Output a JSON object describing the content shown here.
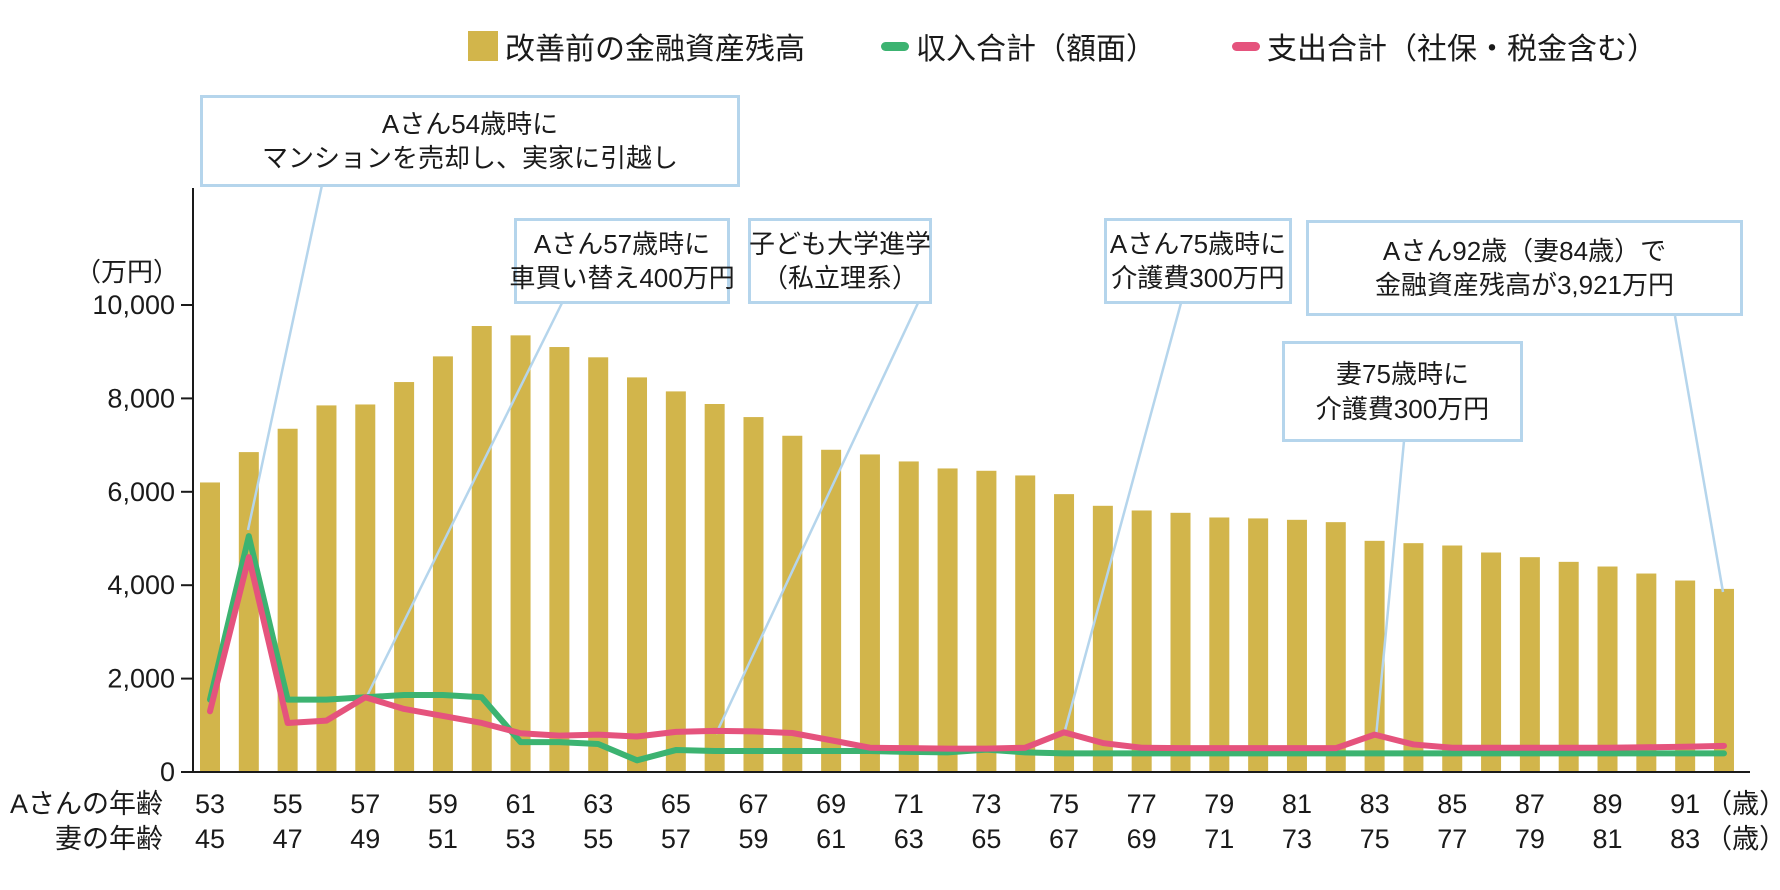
{
  "legend": {
    "items": [
      {
        "label": "改善前の金融資産残高",
        "type": "bar"
      },
      {
        "label": "収入合計（額面）",
        "type": "line"
      },
      {
        "label": "支出合計（社保・税金含む）",
        "type": "line"
      }
    ]
  },
  "y_axis": {
    "unit_label": "（万円）",
    "tick_labels": [
      "0",
      "2,000",
      "4,000",
      "6,000",
      "8,000",
      "10,000"
    ]
  },
  "x_axis": {
    "row1_label": "Aさんの年齢",
    "row2_label": "妻の年齢",
    "age_suffix": "（歳）"
  },
  "annotations": [
    {
      "line1": "Aさん54歳時に",
      "line2": "マンションを売却し、実家に引越し"
    },
    {
      "line1": "Aさん57歳時に",
      "line2": "車買い替え400万円"
    },
    {
      "line1": "子ども大学進学",
      "line2": "（私立理系）"
    },
    {
      "line1": "Aさん75歳時に",
      "line2": "介護費300万円"
    },
    {
      "line1": "妻75歳時に",
      "line2": "介護費300万円"
    },
    {
      "line1": "Aさん92歳（妻84歳）で",
      "line2": "金融資産残高が3,921万円"
    }
  ],
  "colors": {
    "bar": "#d2b54b",
    "income": "#3cb371",
    "expense": "#e5537d",
    "annotation": "#b5d5ec",
    "axis": "#1a1a1a"
  },
  "chart_data": {
    "type": "bar",
    "subtype": "combo-bar-with-lines",
    "title": "",
    "ylabel": "（万円）",
    "ylim": [
      0,
      10000
    ],
    "ytick_step": 2000,
    "yticks": [
      0,
      2000,
      4000,
      6000,
      8000,
      10000
    ],
    "grid": false,
    "legend_position": "top",
    "x_age_a": [
      53,
      54,
      55,
      56,
      57,
      58,
      59,
      60,
      61,
      62,
      63,
      64,
      65,
      66,
      67,
      68,
      69,
      70,
      71,
      72,
      73,
      74,
      75,
      76,
      77,
      78,
      79,
      80,
      81,
      82,
      83,
      84,
      85,
      86,
      87,
      88,
      89,
      90,
      91,
      92
    ],
    "x_age_wife": [
      45,
      46,
      47,
      48,
      49,
      50,
      51,
      52,
      53,
      54,
      55,
      56,
      57,
      58,
      59,
      60,
      61,
      62,
      63,
      64,
      65,
      66,
      67,
      68,
      69,
      70,
      71,
      72,
      73,
      74,
      75,
      76,
      77,
      78,
      79,
      80,
      81,
      82,
      83,
      84
    ],
    "x_labels_every": 2,
    "series": [
      {
        "name": "改善前の金融資産残高",
        "type": "bar",
        "color": "#d2b54b",
        "values": [
          6200,
          6850,
          7350,
          7850,
          7870,
          8350,
          8900,
          9550,
          9350,
          9100,
          8880,
          8450,
          8150,
          7880,
          7600,
          7200,
          6900,
          6800,
          6650,
          6500,
          6450,
          6350,
          5950,
          5700,
          5600,
          5550,
          5450,
          5430,
          5400,
          5350,
          4950,
          4900,
          4850,
          4700,
          4600,
          4500,
          4400,
          4250,
          4100,
          3921
        ]
      },
      {
        "name": "収入合計（額面）",
        "type": "line",
        "color": "#3cb371",
        "values": [
          1550,
          5050,
          1550,
          1550,
          1600,
          1650,
          1650,
          1600,
          640,
          640,
          600,
          250,
          470,
          450,
          450,
          450,
          450,
          450,
          430,
          420,
          480,
          420,
          400,
          400,
          400,
          400,
          400,
          400,
          400,
          400,
          400,
          400,
          400,
          400,
          400,
          400,
          400,
          400,
          400,
          400
        ]
      },
      {
        "name": "支出合計（社保・税金含む）",
        "type": "line",
        "color": "#e5537d",
        "values": [
          1300,
          4600,
          1050,
          1100,
          1600,
          1350,
          1200,
          1050,
          830,
          780,
          800,
          760,
          860,
          880,
          870,
          835,
          680,
          520,
          510,
          500,
          500,
          520,
          850,
          620,
          520,
          510,
          510,
          510,
          510,
          510,
          800,
          590,
          520,
          520,
          520,
          520,
          520,
          530,
          540,
          560
        ]
      }
    ],
    "final_balance_label": "3,921"
  }
}
